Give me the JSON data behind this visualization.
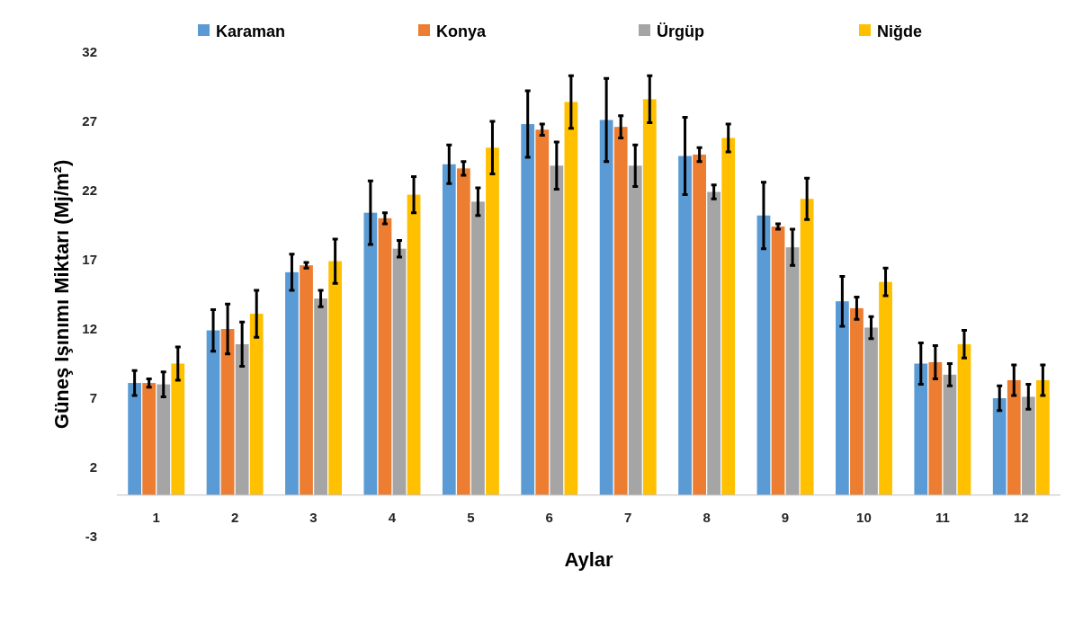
{
  "chart_data": {
    "type": "bar",
    "xlabel": "Aylar",
    "ylabel": "Güneş Işınımı Miktarı (Mj/m²)",
    "categories": [
      "1",
      "2",
      "3",
      "4",
      "5",
      "6",
      "7",
      "8",
      "9",
      "10",
      "11",
      "12"
    ],
    "ylim": [
      -3,
      32
    ],
    "yticks": [
      -3,
      2,
      7,
      12,
      17,
      22,
      27,
      32
    ],
    "grid": false,
    "legend": "top",
    "series": [
      {
        "name": "Karaman",
        "color": "#5b9bd5",
        "values": [
          8.1,
          11.9,
          16.1,
          20.4,
          23.9,
          26.8,
          27.1,
          24.5,
          20.2,
          14.0,
          9.5,
          7.0
        ],
        "errors": [
          0.9,
          1.5,
          1.3,
          2.3,
          1.4,
          2.4,
          3.0,
          2.8,
          2.4,
          1.8,
          1.5,
          0.9
        ]
      },
      {
        "name": "Konya",
        "color": "#ed7d31",
        "values": [
          8.1,
          12.0,
          16.6,
          20.0,
          23.6,
          26.4,
          26.6,
          24.6,
          19.4,
          13.5,
          9.6,
          8.3
        ],
        "errors": [
          0.3,
          1.8,
          0.2,
          0.4,
          0.5,
          0.4,
          0.8,
          0.5,
          0.2,
          0.8,
          1.2,
          1.1
        ]
      },
      {
        "name": "Ürgüp",
        "color": "#a5a5a5",
        "values": [
          8.0,
          10.9,
          14.2,
          17.8,
          21.2,
          23.8,
          23.8,
          21.9,
          17.9,
          12.1,
          8.7,
          7.1
        ],
        "errors": [
          0.9,
          1.6,
          0.6,
          0.6,
          1.0,
          1.7,
          1.5,
          0.5,
          1.3,
          0.8,
          0.8,
          0.9
        ]
      },
      {
        "name": "Niğde",
        "color": "#ffc000",
        "values": [
          9.5,
          13.1,
          16.9,
          21.7,
          25.1,
          28.4,
          28.6,
          25.8,
          21.4,
          15.4,
          10.9,
          8.3
        ],
        "errors": [
          1.2,
          1.7,
          1.6,
          1.3,
          1.9,
          1.9,
          1.7,
          1.0,
          1.5,
          1.0,
          1.0,
          1.1
        ]
      }
    ]
  }
}
